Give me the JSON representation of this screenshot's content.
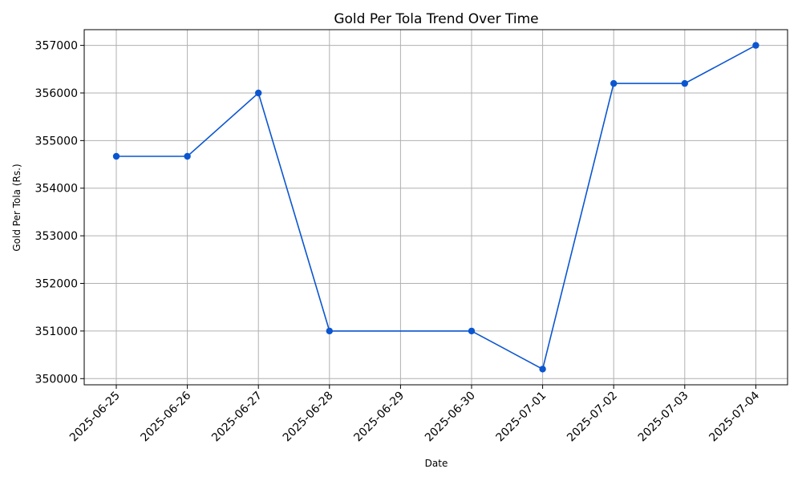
{
  "chart_data": {
    "type": "line",
    "title": "Gold Per Tola Trend Over Time",
    "xlabel": "Date",
    "ylabel": "Gold Per Tola (Rs.)",
    "x_ticks": [
      "2025-06-25",
      "2025-06-26",
      "2025-06-27",
      "2025-06-28",
      "2025-06-29",
      "2025-06-30",
      "2025-07-01",
      "2025-07-02",
      "2025-07-03",
      "2025-07-04"
    ],
    "y_ticks": [
      "350000",
      "351000",
      "352000",
      "353000",
      "354000",
      "355000",
      "356000",
      "357000"
    ],
    "ylim": [
      349870,
      357330
    ],
    "grid": true,
    "series": [
      {
        "color": "#0b56d0",
        "marker": "circle",
        "points": [
          {
            "x": "2025-06-25",
            "y": 354670
          },
          {
            "x": "2025-06-26",
            "y": 354670
          },
          {
            "x": "2025-06-27",
            "y": 356000
          },
          {
            "x": "2025-06-28",
            "y": 351000
          },
          {
            "x": "2025-06-30",
            "y": 351000
          },
          {
            "x": "2025-07-01",
            "y": 350200
          },
          {
            "x": "2025-07-02",
            "y": 356200
          },
          {
            "x": "2025-07-03",
            "y": 356200
          },
          {
            "x": "2025-07-04",
            "y": 357000
          }
        ]
      }
    ]
  }
}
